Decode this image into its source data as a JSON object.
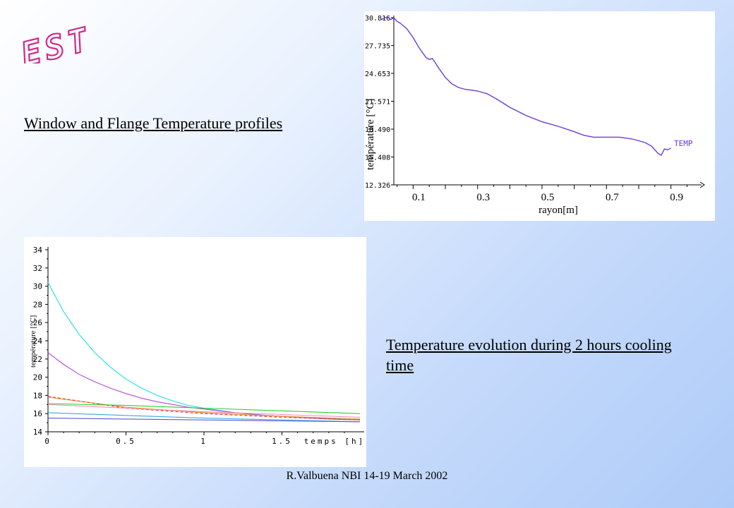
{
  "logo": {
    "text": "EST",
    "color": "#d02a8a"
  },
  "headings": {
    "window_flange": "Window and Flange Temperature profiles",
    "evolution": "Temperature evolution during 2 hours cooling time"
  },
  "footer": "R.Valbuena NBI 14-19 March 2002",
  "chart_data": [
    {
      "type": "line",
      "xlabel": "rayon[m]",
      "ylabel": "température [°C]",
      "y_ticks": [
        "30.816",
        "27.735",
        "24.653",
        "21.571",
        "18.490",
        "15.408",
        "12.326"
      ],
      "x_ticks": [
        "0.1",
        "0.3",
        "0.5",
        "0.7",
        "0.9"
      ],
      "xlim": [
        0,
        1.0
      ],
      "ylim": [
        12.326,
        30.816
      ],
      "legend": "TEMP",
      "series": [
        {
          "name": "TEMP",
          "color": "#6a3bd6",
          "x": [
            0.0,
            0.02,
            0.03,
            0.04,
            0.05,
            0.06,
            0.08,
            0.1,
            0.12,
            0.14,
            0.15,
            0.16,
            0.18,
            0.2,
            0.22,
            0.24,
            0.26,
            0.28,
            0.3,
            0.33,
            0.36,
            0.4,
            0.45,
            0.5,
            0.55,
            0.6,
            0.63,
            0.66,
            0.7,
            0.74,
            0.78,
            0.8,
            0.82,
            0.84,
            0.86,
            0.87,
            0.88,
            0.89,
            0.9
          ],
          "values": [
            30.6,
            30.9,
            30.6,
            30.8,
            30.4,
            30.2,
            29.6,
            28.6,
            27.4,
            26.4,
            26.2,
            26.3,
            25.2,
            24.2,
            23.5,
            23.1,
            22.9,
            22.8,
            22.7,
            22.4,
            21.8,
            20.9,
            20.0,
            19.3,
            18.8,
            18.2,
            17.8,
            17.6,
            17.6,
            17.6,
            17.4,
            17.2,
            17.0,
            16.6,
            15.8,
            15.6,
            16.3,
            16.2,
            16.4
          ]
        }
      ]
    },
    {
      "type": "line",
      "xlabel": "temps [h]",
      "ylabel": "température [°C]",
      "y_ticks": [
        "14",
        "16",
        "18",
        "20",
        "22",
        "24",
        "26",
        "28",
        "30",
        "32",
        "34"
      ],
      "x_ticks": [
        "0",
        "0.5",
        "1",
        "1.5"
      ],
      "xlim": [
        0,
        2.0
      ],
      "ylim": [
        14,
        34
      ],
      "series": [
        {
          "color": "#19e0e6",
          "x": [
            0,
            0.1,
            0.2,
            0.3,
            0.4,
            0.5,
            0.6,
            0.7,
            0.8,
            0.9,
            1.0,
            1.2,
            1.4,
            1.6,
            1.8,
            2.0
          ],
          "values": [
            30.4,
            27.2,
            24.7,
            22.7,
            21.1,
            19.8,
            18.8,
            18.0,
            17.4,
            16.9,
            16.6,
            16.1,
            15.8,
            15.6,
            15.45,
            15.4
          ]
        },
        {
          "color": "#b449d6",
          "x": [
            0,
            0.1,
            0.2,
            0.3,
            0.4,
            0.5,
            0.6,
            0.7,
            0.8,
            0.9,
            1.0,
            1.2,
            1.4,
            1.6,
            1.8,
            2.0
          ],
          "values": [
            22.7,
            21.4,
            20.3,
            19.5,
            18.8,
            18.2,
            17.7,
            17.3,
            17.0,
            16.7,
            16.5,
            16.1,
            15.8,
            15.6,
            15.4,
            15.3
          ]
        },
        {
          "color": "#e8952a",
          "x": [
            0,
            0.5,
            1.0,
            1.5,
            2.0
          ],
          "values": [
            17.8,
            16.7,
            16.1,
            15.7,
            15.4
          ]
        },
        {
          "color": "#e23b3b",
          "x": [
            0,
            0.5,
            1.0,
            1.5,
            2.0
          ],
          "values": [
            17.9,
            16.6,
            16.0,
            15.6,
            15.3
          ]
        },
        {
          "color": "#2fd02f",
          "x": [
            0,
            0.5,
            1.0,
            1.5,
            2.0
          ],
          "values": [
            17.1,
            16.9,
            16.6,
            16.3,
            16.0
          ]
        },
        {
          "color": "#f28ab0",
          "x": [
            0,
            0.5,
            1.0,
            1.5,
            2.0
          ],
          "values": [
            17.0,
            16.6,
            16.2,
            15.9,
            15.6
          ]
        },
        {
          "color": "#3aa7e8",
          "x": [
            0,
            0.5,
            1.0,
            1.5,
            2.0
          ],
          "values": [
            16.1,
            15.8,
            15.5,
            15.3,
            15.1
          ]
        },
        {
          "color": "#5a5ad6",
          "x": [
            0,
            0.5,
            1.0,
            1.5,
            2.0
          ],
          "values": [
            15.5,
            15.4,
            15.3,
            15.2,
            15.1
          ]
        }
      ]
    }
  ]
}
